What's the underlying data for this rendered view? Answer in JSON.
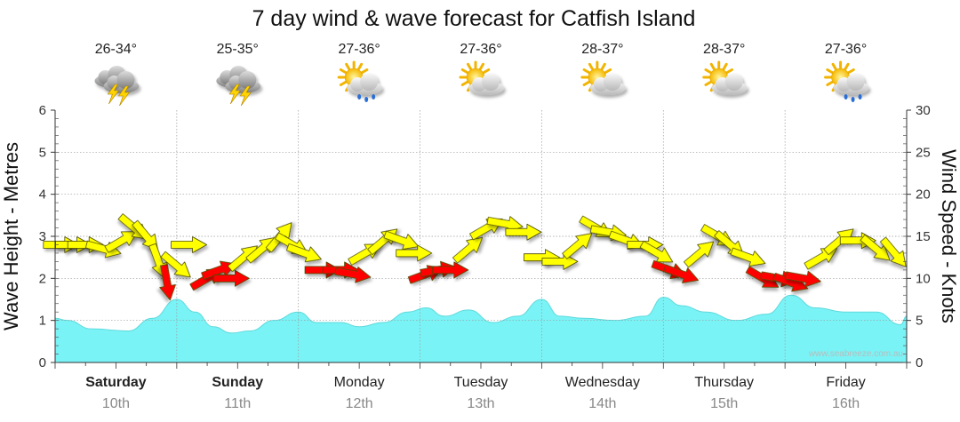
{
  "chart_data": {
    "type": "area",
    "title": "7 day wind & wave forecast for Catfish Island",
    "y_left": {
      "label": "Wave Height - Metres",
      "range": [
        0,
        6
      ],
      "ticks": [
        0,
        1,
        2,
        3,
        4,
        5,
        6
      ]
    },
    "y_right": {
      "label": "Wind Speed - Knots",
      "range": [
        0,
        30
      ],
      "ticks": [
        0,
        5,
        10,
        15,
        20,
        25,
        30
      ]
    },
    "grid": true,
    "credit": "www.seabreeze.com.au",
    "days": [
      {
        "day": "Saturday",
        "date": "10th",
        "temp": "26-34°",
        "icon": "thunderstorm-icon",
        "bold": true
      },
      {
        "day": "Sunday",
        "date": "11th",
        "temp": "25-35°",
        "icon": "thunderstorm-icon",
        "bold": true
      },
      {
        "day": "Monday",
        "date": "12th",
        "temp": "27-36°",
        "icon": "sun-cloud-rain-icon",
        "bold": false
      },
      {
        "day": "Tuesday",
        "date": "13th",
        "temp": "27-36°",
        "icon": "sun-cloud-icon",
        "bold": false
      },
      {
        "day": "Wednesday",
        "date": "14th",
        "temp": "28-37°",
        "icon": "sun-cloud-icon",
        "bold": false
      },
      {
        "day": "Thursday",
        "date": "15th",
        "temp": "28-37°",
        "icon": "sun-cloud-icon",
        "bold": false
      },
      {
        "day": "Friday",
        "date": "16th",
        "temp": "27-36°",
        "icon": "sun-cloud-rain-icon",
        "bold": false
      }
    ],
    "wave_series": {
      "name": "Wave Height",
      "color": "#7af3f6",
      "x_days": [
        0,
        0.1,
        0.3,
        0.6,
        0.8,
        1.0,
        1.15,
        1.3,
        1.45,
        1.6,
        1.8,
        2.0,
        2.15,
        2.35,
        2.5,
        2.7,
        2.9,
        3.05,
        3.2,
        3.4,
        3.6,
        3.8,
        4.0,
        4.15,
        4.35,
        4.6,
        4.85,
        5.0,
        5.15,
        5.35,
        5.6,
        5.85,
        6.05,
        6.25,
        6.5,
        6.75,
        6.95,
        7.0
      ],
      "values": [
        1.05,
        1.0,
        0.8,
        0.75,
        1.05,
        1.5,
        1.2,
        0.85,
        0.7,
        0.75,
        1.0,
        1.2,
        0.95,
        0.95,
        0.85,
        0.95,
        1.2,
        1.3,
        1.1,
        1.25,
        0.95,
        1.1,
        1.5,
        1.1,
        1.05,
        1.0,
        1.1,
        1.55,
        1.35,
        1.2,
        1.0,
        1.15,
        1.6,
        1.3,
        1.2,
        1.2,
        0.9,
        1.1
      ]
    },
    "wind_arrows": {
      "unit": "knots",
      "colors": {
        "moderate": "#ffff00",
        "strong": "#ff0000"
      },
      "points": [
        {
          "x": 0.05,
          "speed": 14,
          "dir": 0,
          "c": "moderate"
        },
        {
          "x": 0.15,
          "speed": 14,
          "dir": 0,
          "c": "moderate"
        },
        {
          "x": 0.25,
          "speed": 14,
          "dir": 0,
          "c": "moderate"
        },
        {
          "x": 0.4,
          "speed": 13.5,
          "dir": 15,
          "c": "moderate"
        },
        {
          "x": 0.55,
          "speed": 14.5,
          "dir": -30,
          "c": "moderate"
        },
        {
          "x": 0.65,
          "speed": 16,
          "dir": 40,
          "c": "moderate"
        },
        {
          "x": 0.75,
          "speed": 15,
          "dir": 50,
          "c": "moderate"
        },
        {
          "x": 0.85,
          "speed": 12,
          "dir": 70,
          "c": "moderate"
        },
        {
          "x": 0.92,
          "speed": 9.5,
          "dir": 80,
          "c": "strong"
        },
        {
          "x": 1.0,
          "speed": 11.5,
          "dir": 40,
          "c": "moderate"
        },
        {
          "x": 1.1,
          "speed": 14,
          "dir": 0,
          "c": "moderate"
        },
        {
          "x": 1.25,
          "speed": 10,
          "dir": -30,
          "c": "strong"
        },
        {
          "x": 1.35,
          "speed": 11,
          "dir": -20,
          "c": "strong"
        },
        {
          "x": 1.45,
          "speed": 10,
          "dir": 0,
          "c": "strong"
        },
        {
          "x": 1.55,
          "speed": 12.5,
          "dir": -40,
          "c": "moderate"
        },
        {
          "x": 1.7,
          "speed": 13.5,
          "dir": -40,
          "c": "moderate"
        },
        {
          "x": 1.85,
          "speed": 15,
          "dir": -50,
          "c": "moderate"
        },
        {
          "x": 1.95,
          "speed": 14,
          "dir": 30,
          "c": "moderate"
        },
        {
          "x": 2.05,
          "speed": 13,
          "dir": 20,
          "c": "moderate"
        },
        {
          "x": 2.2,
          "speed": 11,
          "dir": 0,
          "c": "strong"
        },
        {
          "x": 2.35,
          "speed": 11,
          "dir": 0,
          "c": "strong"
        },
        {
          "x": 2.45,
          "speed": 10.5,
          "dir": 10,
          "c": "strong"
        },
        {
          "x": 2.55,
          "speed": 13,
          "dir": -30,
          "c": "moderate"
        },
        {
          "x": 2.7,
          "speed": 14.5,
          "dir": -40,
          "c": "moderate"
        },
        {
          "x": 2.85,
          "speed": 14.5,
          "dir": 20,
          "c": "moderate"
        },
        {
          "x": 2.95,
          "speed": 13,
          "dir": 0,
          "c": "moderate"
        },
        {
          "x": 3.05,
          "speed": 10.5,
          "dir": -20,
          "c": "strong"
        },
        {
          "x": 3.15,
          "speed": 11,
          "dir": -10,
          "c": "strong"
        },
        {
          "x": 3.25,
          "speed": 11,
          "dir": 0,
          "c": "strong"
        },
        {
          "x": 3.4,
          "speed": 13.5,
          "dir": -40,
          "c": "moderate"
        },
        {
          "x": 3.55,
          "speed": 16,
          "dir": -30,
          "c": "moderate"
        },
        {
          "x": 3.7,
          "speed": 16.5,
          "dir": 10,
          "c": "moderate"
        },
        {
          "x": 3.85,
          "speed": 15.5,
          "dir": 0,
          "c": "moderate"
        },
        {
          "x": 4.0,
          "speed": 12.5,
          "dir": 0,
          "c": "moderate"
        },
        {
          "x": 4.15,
          "speed": 12,
          "dir": 0,
          "c": "moderate"
        },
        {
          "x": 4.3,
          "speed": 14,
          "dir": -40,
          "c": "moderate"
        },
        {
          "x": 4.45,
          "speed": 16,
          "dir": 30,
          "c": "moderate"
        },
        {
          "x": 4.55,
          "speed": 15.5,
          "dir": 10,
          "c": "moderate"
        },
        {
          "x": 4.7,
          "speed": 14.5,
          "dir": 20,
          "c": "moderate"
        },
        {
          "x": 4.85,
          "speed": 14,
          "dir": 0,
          "c": "moderate"
        },
        {
          "x": 4.95,
          "speed": 13,
          "dir": 30,
          "c": "moderate"
        },
        {
          "x": 5.05,
          "speed": 11,
          "dir": 20,
          "c": "strong"
        },
        {
          "x": 5.15,
          "speed": 10.5,
          "dir": 20,
          "c": "strong"
        },
        {
          "x": 5.3,
          "speed": 13,
          "dir": -40,
          "c": "moderate"
        },
        {
          "x": 5.45,
          "speed": 15,
          "dir": 30,
          "c": "moderate"
        },
        {
          "x": 5.55,
          "speed": 14,
          "dir": 40,
          "c": "moderate"
        },
        {
          "x": 5.7,
          "speed": 12.5,
          "dir": 20,
          "c": "moderate"
        },
        {
          "x": 5.82,
          "speed": 10,
          "dir": 30,
          "c": "strong"
        },
        {
          "x": 5.95,
          "speed": 10,
          "dir": 10,
          "c": "strong"
        },
        {
          "x": 6.05,
          "speed": 9.5,
          "dir": 20,
          "c": "strong"
        },
        {
          "x": 6.15,
          "speed": 10,
          "dir": 10,
          "c": "strong"
        },
        {
          "x": 6.3,
          "speed": 12.5,
          "dir": -30,
          "c": "moderate"
        },
        {
          "x": 6.45,
          "speed": 14.5,
          "dir": -40,
          "c": "moderate"
        },
        {
          "x": 6.6,
          "speed": 14.5,
          "dir": 0,
          "c": "moderate"
        },
        {
          "x": 6.75,
          "speed": 13.5,
          "dir": 40,
          "c": "moderate"
        },
        {
          "x": 6.9,
          "speed": 13,
          "dir": 50,
          "c": "moderate"
        }
      ]
    }
  }
}
